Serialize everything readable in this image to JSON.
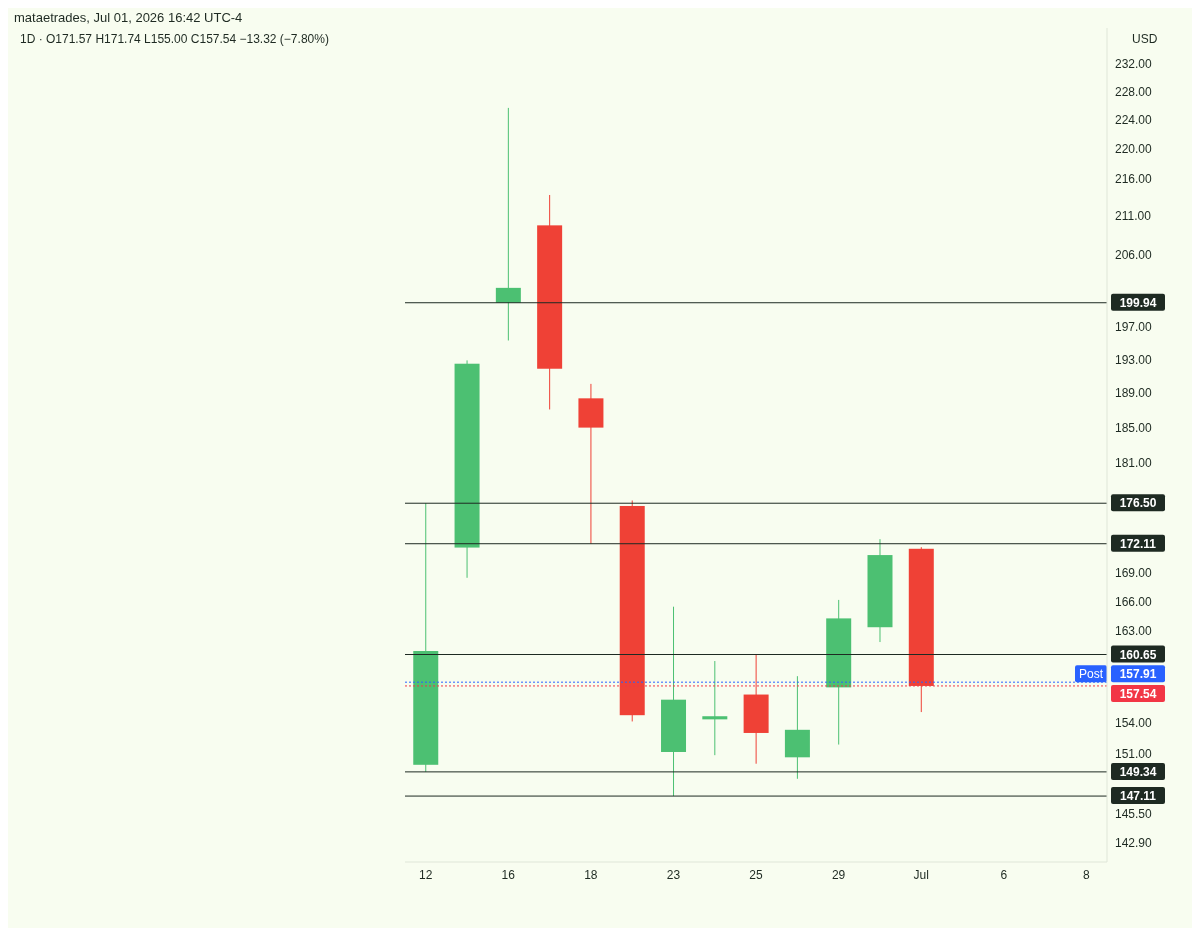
{
  "chart_data": {
    "type": "candlestick",
    "title": "mataetrades, Jul 01, 2026 16:42 UTC-4",
    "subtitle": "1D · O171.57 H171.74 L155.00 C157.54 −13.32 (−7.80%)",
    "ylabel": "USD",
    "categories": [
      "12",
      null,
      "16",
      null,
      "18",
      null,
      "23",
      null,
      "25",
      null,
      "29",
      null,
      "Jul",
      null,
      "6",
      null,
      "8"
    ],
    "ohlc": [
      [
        150.0,
        176.5,
        149.34,
        161.0
      ],
      [
        171.7,
        192.9,
        168.5,
        192.5
      ],
      [
        199.94,
        225.7,
        195.3,
        201.8
      ],
      [
        209.8,
        213.8,
        187.1,
        191.9
      ],
      [
        188.4,
        190.1,
        172.11,
        185.0
      ],
      [
        176.2,
        176.8,
        154.1,
        154.7
      ],
      [
        151.2,
        165.5,
        147.11,
        156.2
      ],
      [
        154.3,
        160.0,
        150.9,
        154.6
      ],
      [
        156.7,
        160.65,
        150.1,
        153.0
      ],
      [
        150.7,
        158.5,
        148.7,
        153.3
      ],
      [
        157.4,
        166.2,
        151.9,
        164.3
      ],
      [
        163.4,
        172.6,
        161.9,
        170.9
      ],
      [
        171.57,
        171.74,
        155.0,
        157.54
      ],
      null,
      null,
      null,
      null
    ],
    "colors": [
      "#4cc072",
      "#4cc072",
      "#4cc072",
      "#ef4136",
      "#ef4136",
      "#ef4136",
      "#4cc072",
      "#4cc072",
      "#ef4136",
      "#4cc072",
      "#4cc072",
      "#4cc072",
      "#ef4136",
      null,
      null,
      null,
      null
    ],
    "log": true,
    "ylim": [
      141.2,
      237.2
    ],
    "yticks": [
      {
        "value": 142.9,
        "label": "142.90"
      },
      {
        "value": 145.5,
        "label": "145.50"
      },
      {
        "value": 151,
        "label": "151.00"
      },
      {
        "value": 154,
        "label": "154.00"
      },
      {
        "value": 163,
        "label": "163.00"
      },
      {
        "value": 166,
        "label": "166.00"
      },
      {
        "value": 169,
        "label": "169.00"
      },
      {
        "value": 181,
        "label": "181.00"
      },
      {
        "value": 185,
        "label": "185.00"
      },
      {
        "value": 189,
        "label": "189.00"
      },
      {
        "value": 193,
        "label": "193.00"
      },
      {
        "value": 197,
        "label": "197.00"
      },
      {
        "value": 206,
        "label": "206.00"
      },
      {
        "value": 211,
        "label": "211.00"
      },
      {
        "value": 216,
        "label": "216.00"
      },
      {
        "value": 220,
        "label": "220.00"
      },
      {
        "value": 224,
        "label": "224.00"
      },
      {
        "value": 228,
        "label": "228.00"
      },
      {
        "value": 232,
        "label": "232.00"
      }
    ],
    "ref_lines": [
      {
        "axis": "y",
        "value": 199.94,
        "label": "199.94",
        "color": "#1e2a22"
      },
      {
        "axis": "y",
        "value": 176.5,
        "label": "176.50",
        "color": "#1e2a22"
      },
      {
        "axis": "y",
        "value": 172.11,
        "label": "172.11",
        "color": "#1e2a22"
      },
      {
        "axis": "y",
        "value": 160.65,
        "label": "160.65",
        "color": "#1e2a22"
      },
      {
        "axis": "y",
        "value": 149.34,
        "label": "149.34",
        "color": "#1e2a22"
      },
      {
        "axis": "y",
        "value": 147.11,
        "label": "147.11",
        "color": "#1e2a22"
      },
      {
        "axis": "y",
        "value": 157.91,
        "label": "157.91",
        "color": "#2962ff",
        "line_style": "dotted"
      },
      {
        "axis": "y",
        "value": 157.54,
        "label": "157.54",
        "color": "#f23645",
        "line_style": "dotted"
      }
    ],
    "annotations": [
      {
        "text": "Post",
        "y": 157.91
      }
    ],
    "grid": false
  }
}
